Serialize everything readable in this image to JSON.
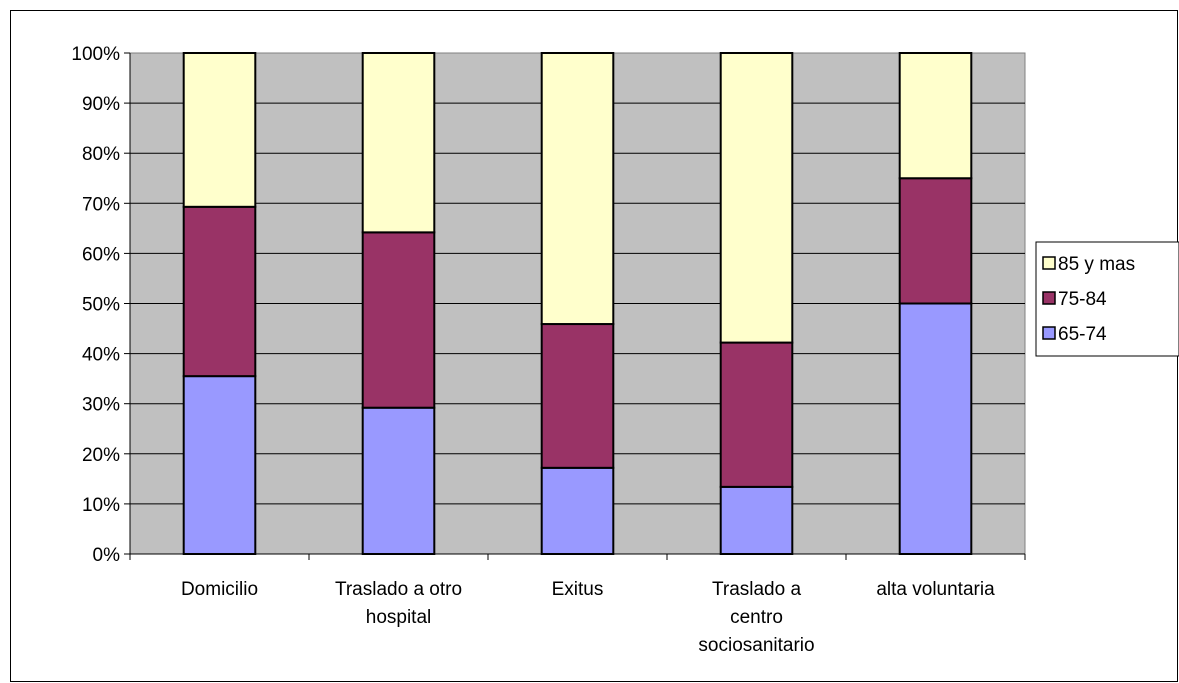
{
  "chart_data": {
    "type": "bar",
    "stacked": true,
    "percent_stacked": true,
    "categories": [
      [
        "Domicilio"
      ],
      [
        "Traslado a otro",
        "hospital"
      ],
      [
        "Exitus"
      ],
      [
        "Traslado a",
        "centro",
        "sociosanitario"
      ],
      [
        "alta voluntaria"
      ]
    ],
    "series": [
      {
        "name": "65-74",
        "color": "#9999ff",
        "values": [
          35.5,
          29.2,
          17.2,
          13.4,
          50.0
        ]
      },
      {
        "name": "75-84",
        "color": "#993366",
        "values": [
          33.8,
          35.0,
          28.7,
          28.8,
          25.0
        ]
      },
      {
        "name": "85 y mas",
        "color": "#ffffcc",
        "values": [
          30.7,
          35.8,
          54.1,
          57.8,
          25.0
        ]
      }
    ],
    "ylim": [
      0,
      100
    ],
    "yticks": [
      "0%",
      "10%",
      "20%",
      "30%",
      "40%",
      "50%",
      "60%",
      "70%",
      "80%",
      "90%",
      "100%"
    ],
    "plot_background": "#c0c0c0",
    "grid": true,
    "legend": {
      "position": "right",
      "order": [
        "85 y mas",
        "75-84",
        "65-74"
      ]
    }
  }
}
